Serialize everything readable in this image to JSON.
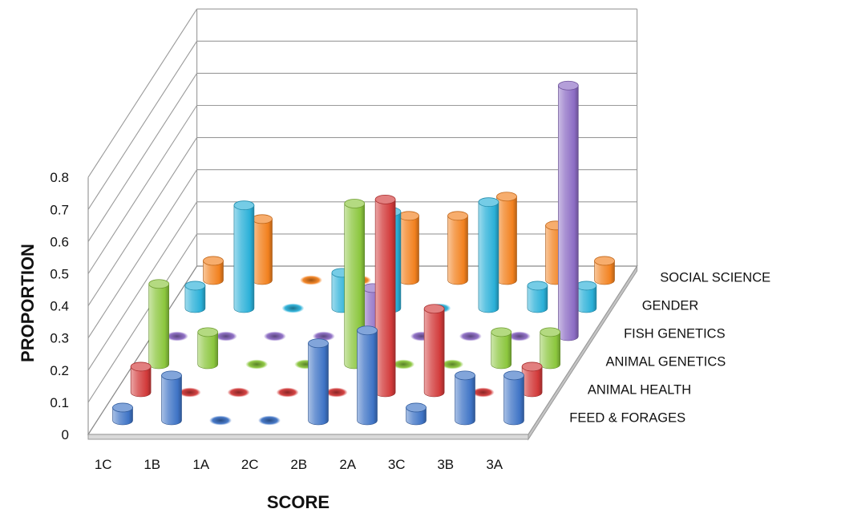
{
  "chart_data": {
    "type": "bar",
    "style": "3d-cylinder",
    "title": "",
    "xlabel": "SCORE",
    "ylabel": "PROPORTION",
    "ylim": [
      0,
      0.8
    ],
    "yticks": [
      "0",
      "0.1",
      "0.2",
      "0.3",
      "0.4",
      "0.5",
      "0.6",
      "0.7",
      "0.8"
    ],
    "categories": [
      "1C",
      "1B",
      "1A",
      "2C",
      "2B",
      "2A",
      "3C",
      "3B",
      "3A"
    ],
    "series": [
      {
        "name": "FEED & FORAGES",
        "color": "#3f74c6",
        "values": [
          0.04,
          0.14,
          0.0,
          0.0,
          0.24,
          0.28,
          0.04,
          0.14,
          0.14
        ]
      },
      {
        "name": "ANIMAL HEALTH",
        "color": "#d23a3a",
        "values": [
          0.08,
          0.0,
          0.0,
          0.0,
          0.0,
          0.6,
          0.26,
          0.0,
          0.08
        ]
      },
      {
        "name": "ANIMAL GENETICS",
        "color": "#8bc63d",
        "values": [
          0.25,
          0.1,
          0.0,
          0.0,
          0.5,
          0.0,
          0.0,
          0.1,
          0.1
        ]
      },
      {
        "name": "FISH GENETICS",
        "color": "#8c6cc4",
        "values": [
          0.0,
          0.0,
          0.0,
          0.0,
          0.15,
          0.0,
          0.0,
          0.0,
          0.78
        ]
      },
      {
        "name": "GENDER",
        "color": "#2ab0d8",
        "values": [
          0.07,
          0.32,
          0.0,
          0.11,
          0.3,
          0.0,
          0.33,
          0.07,
          0.07
        ]
      },
      {
        "name": "SOCIAL SCIENCE",
        "color": "#f2811f",
        "values": [
          0.06,
          0.19,
          0.0,
          0.0,
          0.2,
          0.2,
          0.26,
          0.17,
          0.06
        ]
      }
    ],
    "grid": true
  }
}
